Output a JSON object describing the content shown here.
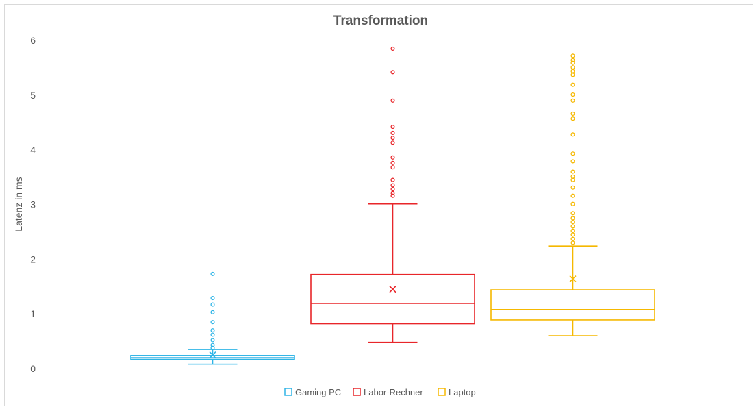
{
  "chart_data": {
    "type": "box",
    "title": "Transformation",
    "xlabel": "",
    "ylabel": "Latenz in ms",
    "ylim": [
      0,
      6
    ],
    "yticks": [
      "0",
      "1",
      "2",
      "3",
      "4",
      "5",
      "6"
    ],
    "grid": false,
    "legend_position": "bottom",
    "series": [
      {
        "name": "Gaming PC",
        "color": "#2EB4E6",
        "whisker_low": 0.08,
        "q1": 0.17,
        "median": 0.2,
        "q3": 0.24,
        "whisker_high": 0.35,
        "mean": 0.25,
        "outliers": [
          0.38,
          0.43,
          0.52,
          0.62,
          0.7,
          0.85,
          1.03,
          1.17,
          1.29,
          1.73
        ]
      },
      {
        "name": "Labor-Rechner",
        "color": "#E8262A",
        "whisker_low": 0.48,
        "q1": 0.82,
        "median": 1.19,
        "q3": 1.72,
        "whisker_high": 3.01,
        "mean": 1.45,
        "outliers": [
          3.16,
          3.21,
          3.28,
          3.35,
          3.45,
          3.68,
          3.76,
          3.86,
          4.13,
          4.22,
          4.31,
          4.42,
          4.9,
          5.42,
          5.85
        ]
      },
      {
        "name": "Laptop",
        "color": "#F5B800",
        "whisker_low": 0.6,
        "q1": 0.89,
        "median": 1.08,
        "q3": 1.44,
        "whisker_high": 2.24,
        "mean": 1.64,
        "outliers": [
          2.3,
          2.37,
          2.45,
          2.52,
          2.6,
          2.68,
          2.75,
          2.84,
          3.01,
          3.16,
          3.31,
          3.45,
          3.51,
          3.6,
          3.79,
          3.93,
          4.28,
          4.57,
          4.66,
          4.9,
          5.01,
          5.19,
          5.37,
          5.44,
          5.51,
          5.59,
          5.64,
          5.72
        ]
      }
    ]
  }
}
